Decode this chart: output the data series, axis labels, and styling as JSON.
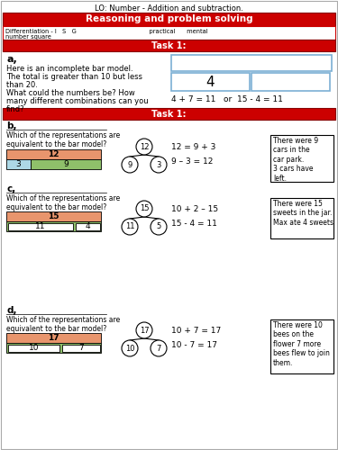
{
  "title_lo": "LO: Number - Addition and subtraction.",
  "title_red": "Reasoning and problem solving",
  "diff_line1": "Differentiation - I   S   G                                      practical      mental",
  "diff_line2": "number square",
  "task1_text": "Task 1:",
  "task1b_text": "Task 1:",
  "section_a_label": "a,",
  "section_a_line1": "Here is an incomplete bar model.",
  "section_a_line2": "The total is greater than 10 but less",
  "section_a_line3": "than 20.",
  "section_a_line4": "What could the numbers be? How",
  "section_a_line5": "many different combinations can you",
  "section_a_line6": "find?",
  "section_a_box_num": "4",
  "section_a_equation": "4 + 7 = 11   or  15 - 4 = 11",
  "section_b_label": "b,",
  "section_b_question": "Which of the representations are\nequivalent to the bar model?",
  "section_b_bar_top": "12",
  "section_b_bar_bot_left": "3",
  "section_b_bar_bot_right": "9",
  "section_b_tree_top": "12",
  "section_b_tree_left": "9",
  "section_b_tree_right": "3",
  "section_b_eq1": "12 = 9 + 3",
  "section_b_eq2": "9 – 3 = 12",
  "section_b_story": "There were 9\ncars in the\ncar park.\n3 cars have\nleft.",
  "section_c_label": "c,",
  "section_c_question": "Which of the representations are\nequivalent to the bar model?",
  "section_c_bar_top": "15",
  "section_c_bar_bot_left": "11",
  "section_c_bar_bot_right": "4",
  "section_c_tree_top": "15",
  "section_c_tree_left": "11",
  "section_c_tree_right": "5",
  "section_c_eq1": "10 + 2 – 15",
  "section_c_eq2": "15 - 4 = 11",
  "section_c_story": "There were 15\nsweets in the jar.\nMax ate 4 sweets",
  "section_d_label": "d,",
  "section_d_question": "Which of the representations are\nequivalent to the bar model?",
  "section_d_bar_top": "17",
  "section_d_bar_bot_left": "10",
  "section_d_bar_bot_right": "7",
  "section_d_tree_top": "17",
  "section_d_tree_left": "10",
  "section_d_tree_right": "7",
  "section_d_eq1": "10 + 7 = 17",
  "section_d_eq2": "10 - 7 = 17",
  "section_d_story": "There were 10\nbees on the\nflower 7 more\nbees flew to join\nthem.",
  "color_red": "#cc0000",
  "color_orange": "#e8956d",
  "color_green": "#8fc06a",
  "color_blue_light": "#add8e6",
  "color_white": "#ffffff",
  "color_black": "#000000",
  "color_border_blue": "#7bafd4",
  "color_gray_border": "#aaaaaa"
}
